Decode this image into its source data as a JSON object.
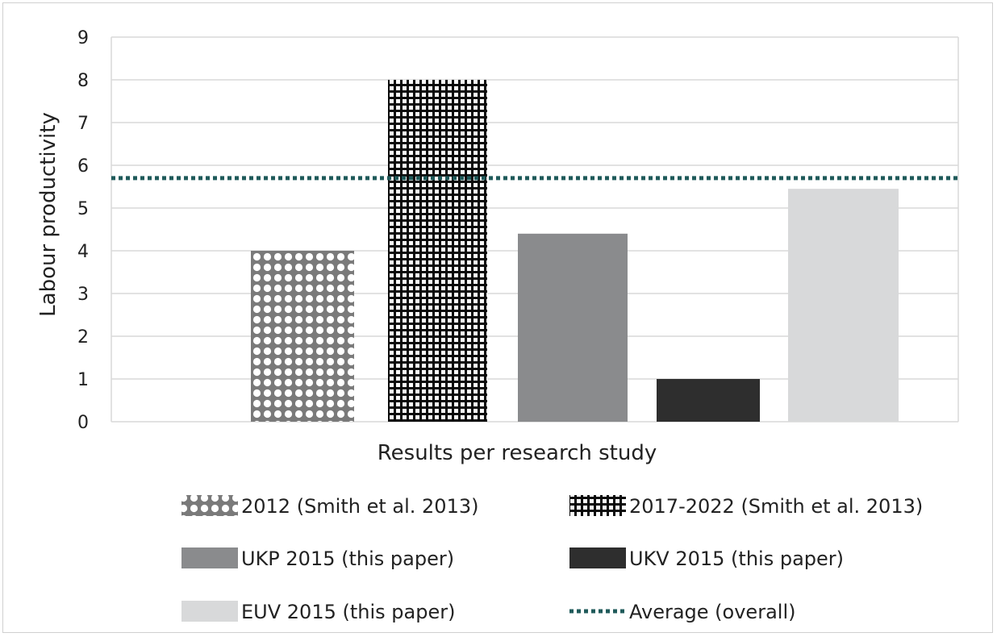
{
  "chart_data": {
    "type": "bar",
    "title": "",
    "xlabel": "Results per research study",
    "ylabel": "Labour productivity",
    "ylim": [
      0,
      9
    ],
    "yticks": [
      "0",
      "1",
      "2",
      "3",
      "4",
      "5",
      "6",
      "7",
      "8",
      "9"
    ],
    "grid": true,
    "legend_position": "bottom",
    "series": [
      {
        "name": "2012 (Smith et al. 2013)",
        "value": 4.0,
        "pattern": "circles",
        "color": "#7a7a7a"
      },
      {
        "name": "2017-2022 (Smith et al. 2013)",
        "value": 8.0,
        "pattern": "grid",
        "color": "#0a0a0a"
      },
      {
        "name": "UKP 2015 (this paper)",
        "value": 4.4,
        "pattern": "solid",
        "color": "#8a8b8d"
      },
      {
        "name": "UKV 2015 (this paper)",
        "value": 1.0,
        "pattern": "solid",
        "color": "#2e2e2e"
      },
      {
        "name": "EUV 2015 (this paper)",
        "value": 5.45,
        "pattern": "solid",
        "color": "#d8d9da"
      }
    ],
    "average": {
      "name": "Average (overall)",
      "value": 5.7,
      "color": "#1f5a5a",
      "style": "dotted"
    }
  }
}
